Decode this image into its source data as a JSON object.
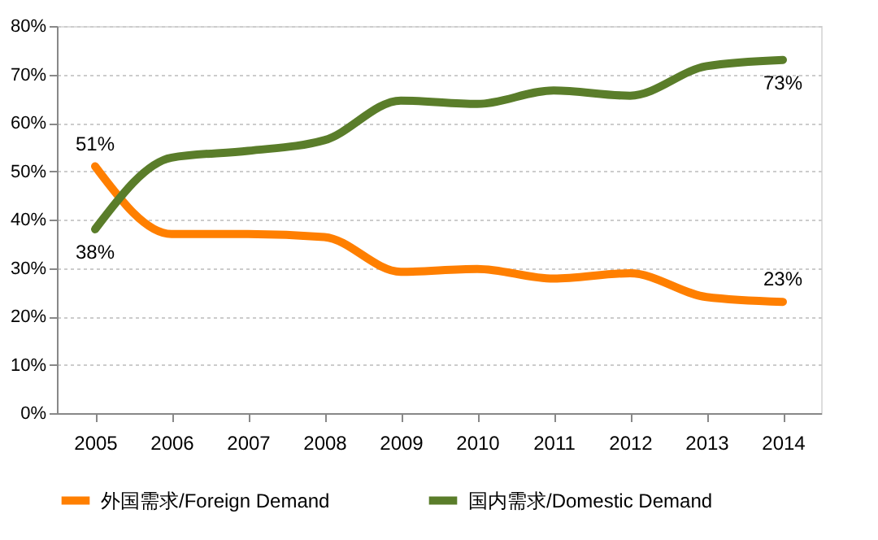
{
  "chart_data": {
    "type": "line",
    "categories": [
      "2005",
      "2006",
      "2007",
      "2008",
      "2009",
      "2010",
      "2011",
      "2012",
      "2013",
      "2014"
    ],
    "series": [
      {
        "name": "外国需求/Foreign Demand",
        "color": "#ff7f00",
        "values": [
          51,
          37,
          37,
          36.4,
          29.2,
          29.8,
          27.8,
          28.9,
          24,
          23
        ],
        "value_labels": [
          "51%",
          null,
          null,
          null,
          null,
          null,
          null,
          null,
          null,
          "23%"
        ]
      },
      {
        "name": "国内需求/Domestic Demand",
        "color": "#5a7d2a",
        "values": [
          38,
          52.8,
          54.2,
          56.4,
          64.6,
          63.9,
          66.7,
          65.6,
          71.7,
          73
        ],
        "value_labels": [
          "38%",
          null,
          null,
          null,
          null,
          null,
          null,
          null,
          null,
          "73%"
        ]
      }
    ],
    "ylim": [
      0,
      80
    ],
    "yticks": [
      {
        "value": 0,
        "label": "0%"
      },
      {
        "value": 10,
        "label": "10%"
      },
      {
        "value": 20,
        "label": "20%"
      },
      {
        "value": 30,
        "label": "30%"
      },
      {
        "value": 40,
        "label": "40%"
      },
      {
        "value": 50,
        "label": "50%"
      },
      {
        "value": 60,
        "label": "60%"
      },
      {
        "value": 70,
        "label": "70%"
      },
      {
        "value": 80,
        "label": "80%"
      }
    ],
    "grid": "y",
    "legend": "bottom",
    "marker": "none",
    "line_style": "solid"
  }
}
